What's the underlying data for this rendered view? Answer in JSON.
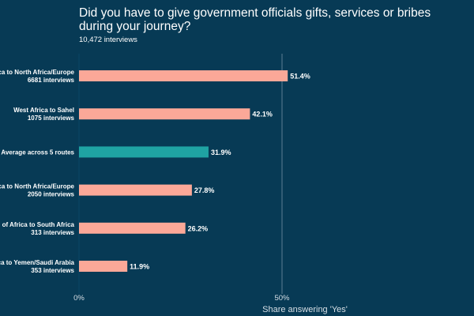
{
  "chart_data": {
    "type": "bar",
    "orientation": "horizontal",
    "title_line1": "Did you have to give government officials gifts, services or bribes",
    "title_line2": "during your journey?",
    "subtitle": "10,472 interviews",
    "xlabel": "Share answering 'Yes'",
    "xlim": [
      0,
      50
    ],
    "xticks": [
      "0%",
      "50%"
    ],
    "grid": "vertical at 50%",
    "categories": [
      {
        "label": "ca to North Africa/Europe",
        "sub": "6681 interviews"
      },
      {
        "label": "West Africa to Sahel",
        "sub": "1075 interviews"
      },
      {
        "label": "Average across 5 routes",
        "sub": ""
      },
      {
        "label": "ca to North Africa/Europe",
        "sub": "2050 interviews"
      },
      {
        "label": "n of Africa to South Africa",
        "sub": "313 interviews"
      },
      {
        "label": "ca to Yemen/Saudi Arabia",
        "sub": "353 interviews"
      }
    ],
    "values": [
      51.4,
      42.1,
      31.9,
      27.8,
      26.2,
      11.9
    ],
    "value_labels": [
      "51.4%",
      "42.1%",
      "31.9%",
      "27.8%",
      "26.2%",
      "11.9%"
    ],
    "colors": {
      "bar": "#fba898",
      "highlight": "#1fa3a3",
      "background": "#073a55",
      "grid": "#5e7f92"
    },
    "highlight_index": 2
  }
}
